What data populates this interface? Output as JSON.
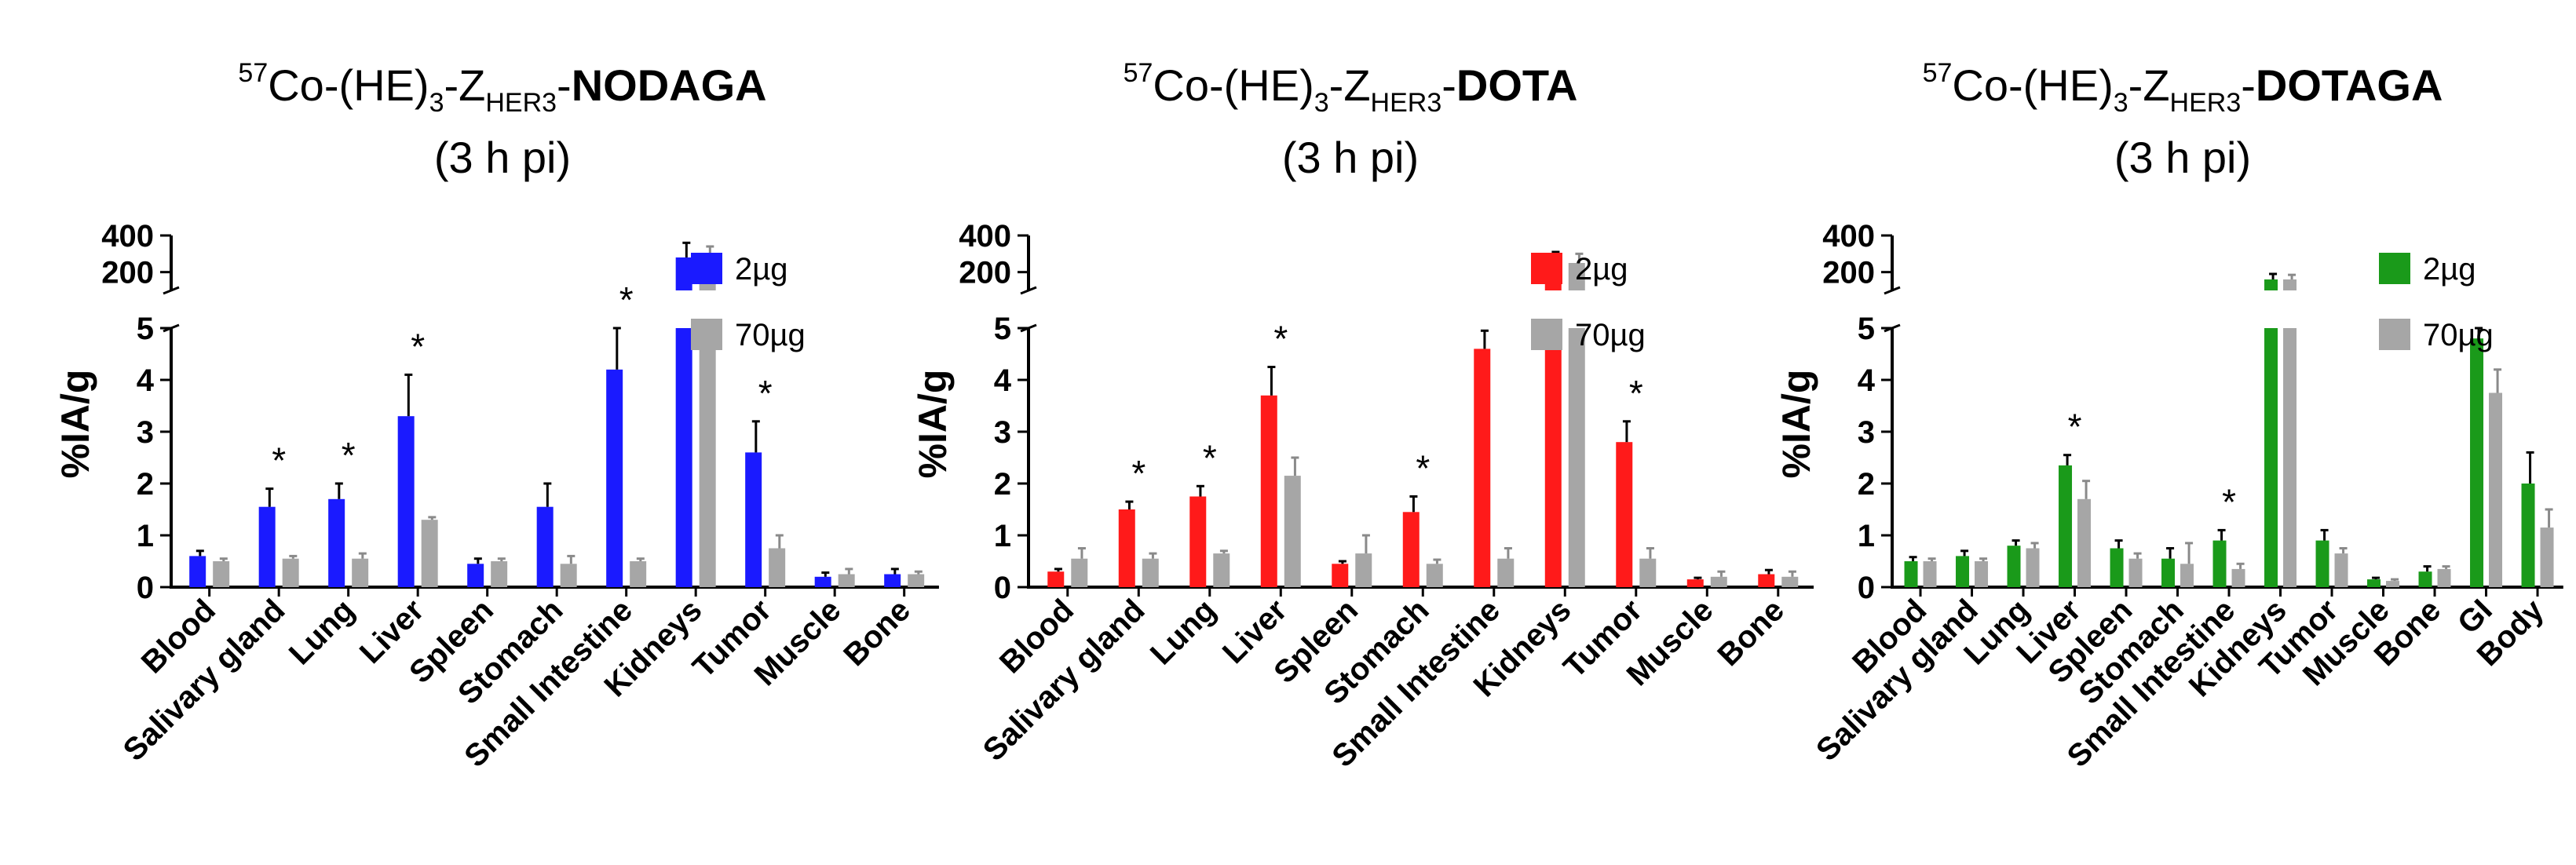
{
  "chart_data": [
    {
      "type": "bar",
      "title": {
        "sup": "57",
        "pre": "Co-(HE)",
        "sub1": "3",
        "mid": "-Z",
        "sub2": "HER3",
        "dash": "-",
        "bold": "NODAGA",
        "line2": "(3 h pi)"
      },
      "ylabel": "%IA/g",
      "xlabel": "",
      "ylim_lower": [
        0,
        5
      ],
      "ylim_upper": [
        100,
        400
      ],
      "yticks_lower": [
        "0",
        "1",
        "2",
        "3",
        "4",
        "5"
      ],
      "yticks_upper": [
        "200",
        "400"
      ],
      "categories": [
        "Blood",
        "Salivary gland",
        "Lung",
        "Liver",
        "Spleen",
        "Stomach",
        "Small Intestine",
        "Kidneys",
        "Tumor",
        "Muscle",
        "Bone"
      ],
      "series": [
        {
          "name": "2µg",
          "color": "#1a1aff",
          "values": [
            0.6,
            1.55,
            1.7,
            3.3,
            0.45,
            1.55,
            4.2,
            280,
            2.6,
            0.2,
            0.25
          ],
          "errors": [
            0.1,
            0.35,
            0.3,
            0.8,
            0.1,
            0.45,
            0.8,
            80,
            0.6,
            0.08,
            0.1
          ]
        },
        {
          "name": "70µg",
          "color": "#a6a6a6",
          "values": [
            0.5,
            0.55,
            0.55,
            1.3,
            0.5,
            0.45,
            0.5,
            300,
            0.75,
            0.25,
            0.25
          ],
          "errors": [
            0.05,
            0.05,
            0.1,
            0.05,
            0.05,
            0.15,
            0.05,
            40,
            0.25,
            0.1,
            0.05
          ]
        }
      ],
      "annotations": [
        {
          "category": "Salivary gland",
          "text": "*"
        },
        {
          "category": "Lung",
          "text": "*"
        },
        {
          "category": "Liver",
          "text": "*"
        },
        {
          "category": "Small Intestine",
          "text": "*"
        },
        {
          "category": "Tumor",
          "text": "*"
        }
      ],
      "legend": "top-right"
    },
    {
      "type": "bar",
      "title": {
        "sup": "57",
        "pre": "Co-(HE)",
        "sub1": "3",
        "mid": "-Z",
        "sub2": "HER3",
        "dash": "-",
        "bold": "DOTA",
        "line2": "(3 h pi)"
      },
      "ylabel": "%IA/g",
      "xlabel": "",
      "ylim_lower": [
        0,
        5
      ],
      "ylim_upper": [
        100,
        400
      ],
      "yticks_lower": [
        "0",
        "1",
        "2",
        "3",
        "4",
        "5"
      ],
      "yticks_upper": [
        "200",
        "400"
      ],
      "categories": [
        "Blood",
        "Salivary gland",
        "Lung",
        "Liver",
        "Spleen",
        "Stomach",
        "Small Intestine",
        "Kidneys",
        "Tumor",
        "Muscle",
        "Bone"
      ],
      "series": [
        {
          "name": "2µg",
          "color": "#ff1a1a",
          "values": [
            0.3,
            1.5,
            1.75,
            3.7,
            0.45,
            1.45,
            4.6,
            250,
            2.8,
            0.15,
            0.25
          ],
          "errors": [
            0.05,
            0.15,
            0.2,
            0.55,
            0.05,
            0.3,
            0.35,
            60,
            0.4,
            0.03,
            0.08
          ]
        },
        {
          "name": "70µg",
          "color": "#a6a6a6",
          "values": [
            0.55,
            0.55,
            0.65,
            2.15,
            0.65,
            0.45,
            0.55,
            250,
            0.55,
            0.2,
            0.2
          ],
          "errors": [
            0.2,
            0.1,
            0.05,
            0.35,
            0.35,
            0.08,
            0.2,
            50,
            0.2,
            0.1,
            0.1
          ]
        }
      ],
      "annotations": [
        {
          "category": "Salivary gland",
          "text": "*"
        },
        {
          "category": "Lung",
          "text": "*"
        },
        {
          "category": "Liver",
          "text": "*"
        },
        {
          "category": "Stomach",
          "text": "*"
        },
        {
          "category": "Tumor",
          "text": "*"
        }
      ],
      "legend": "top-right"
    },
    {
      "type": "bar",
      "title": {
        "sup": "57",
        "pre": "Co-(HE)",
        "sub1": "3",
        "mid": "-Z",
        "sub2": "HER3",
        "dash": "-",
        "bold": "DOTAGA",
        "line2": "(3 h pi)"
      },
      "ylabel": "%IA/g",
      "xlabel": "",
      "ylim_lower": [
        0,
        5
      ],
      "ylim_upper": [
        100,
        400
      ],
      "yticks_lower": [
        "0",
        "1",
        "2",
        "3",
        "4",
        "5"
      ],
      "yticks_upper": [
        "200",
        "400"
      ],
      "categories": [
        "Blood",
        "Salivary gland",
        "Lung",
        "Liver",
        "Spleen",
        "Stomach",
        "Small Intestine",
        "Kidneys",
        "Tumor",
        "Muscle",
        "Bone",
        "GI",
        "Body"
      ],
      "series": [
        {
          "name": "2µg",
          "color": "#1a9a1a",
          "values": [
            0.5,
            0.6,
            0.8,
            2.35,
            0.75,
            0.55,
            0.9,
            160,
            0.9,
            0.15,
            0.3,
            4.8,
            2.0
          ],
          "errors": [
            0.08,
            0.1,
            0.1,
            0.2,
            0.15,
            0.2,
            0.2,
            30,
            0.2,
            0.03,
            0.1,
            0.2,
            0.6
          ]
        },
        {
          "name": "70µg",
          "color": "#a6a6a6",
          "values": [
            0.5,
            0.5,
            0.75,
            1.7,
            0.55,
            0.45,
            0.35,
            160,
            0.65,
            0.12,
            0.35,
            3.75,
            1.15
          ],
          "errors": [
            0.05,
            0.05,
            0.1,
            0.35,
            0.1,
            0.4,
            0.1,
            25,
            0.1,
            0.03,
            0.05,
            0.45,
            0.35
          ]
        }
      ],
      "annotations": [
        {
          "category": "Liver",
          "text": "*"
        },
        {
          "category": "Small Intestine",
          "text": "*"
        }
      ],
      "legend": "top-right"
    }
  ]
}
